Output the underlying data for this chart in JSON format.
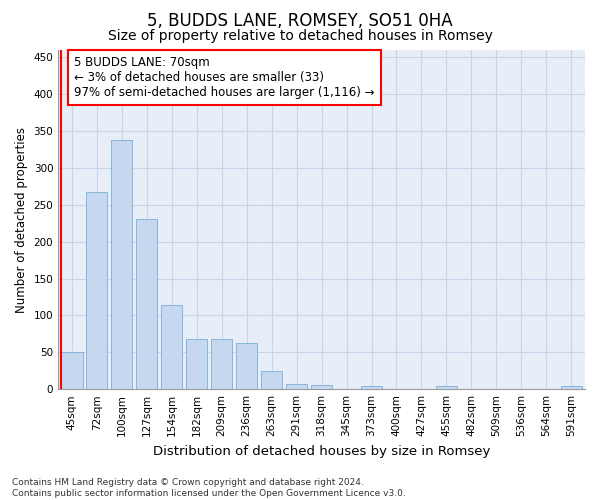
{
  "title": "5, BUDDS LANE, ROMSEY, SO51 0HA",
  "subtitle": "Size of property relative to detached houses in Romsey",
  "xlabel": "Distribution of detached houses by size in Romsey",
  "ylabel": "Number of detached properties",
  "categories": [
    "45sqm",
    "72sqm",
    "100sqm",
    "127sqm",
    "154sqm",
    "182sqm",
    "209sqm",
    "236sqm",
    "263sqm",
    "291sqm",
    "318sqm",
    "345sqm",
    "373sqm",
    "400sqm",
    "427sqm",
    "455sqm",
    "482sqm",
    "509sqm",
    "536sqm",
    "564sqm",
    "591sqm"
  ],
  "values": [
    50,
    267,
    338,
    231,
    114,
    68,
    68,
    62,
    25,
    7,
    6,
    0,
    4,
    0,
    0,
    4,
    0,
    0,
    0,
    0,
    4
  ],
  "bar_color": "#c5d8ef",
  "bar_edge_color": "#7aaed4",
  "marker_color": "red",
  "annotation_text": "5 BUDDS LANE: 70sqm\n← 3% of detached houses are smaller (33)\n97% of semi-detached houses are larger (1,116) →",
  "annotation_box_color": "white",
  "annotation_box_edge": "red",
  "ylim": [
    0,
    460
  ],
  "yticks": [
    0,
    50,
    100,
    150,
    200,
    250,
    300,
    350,
    400,
    450
  ],
  "grid_color": "#c8d4e8",
  "bg_color": "#e8eef8",
  "footer": "Contains HM Land Registry data © Crown copyright and database right 2024.\nContains public sector information licensed under the Open Government Licence v3.0.",
  "title_fontsize": 12,
  "subtitle_fontsize": 10,
  "ylabel_fontsize": 8.5,
  "xlabel_fontsize": 9.5,
  "tick_fontsize": 7.5,
  "annotation_fontsize": 8.5,
  "footer_fontsize": 6.5
}
